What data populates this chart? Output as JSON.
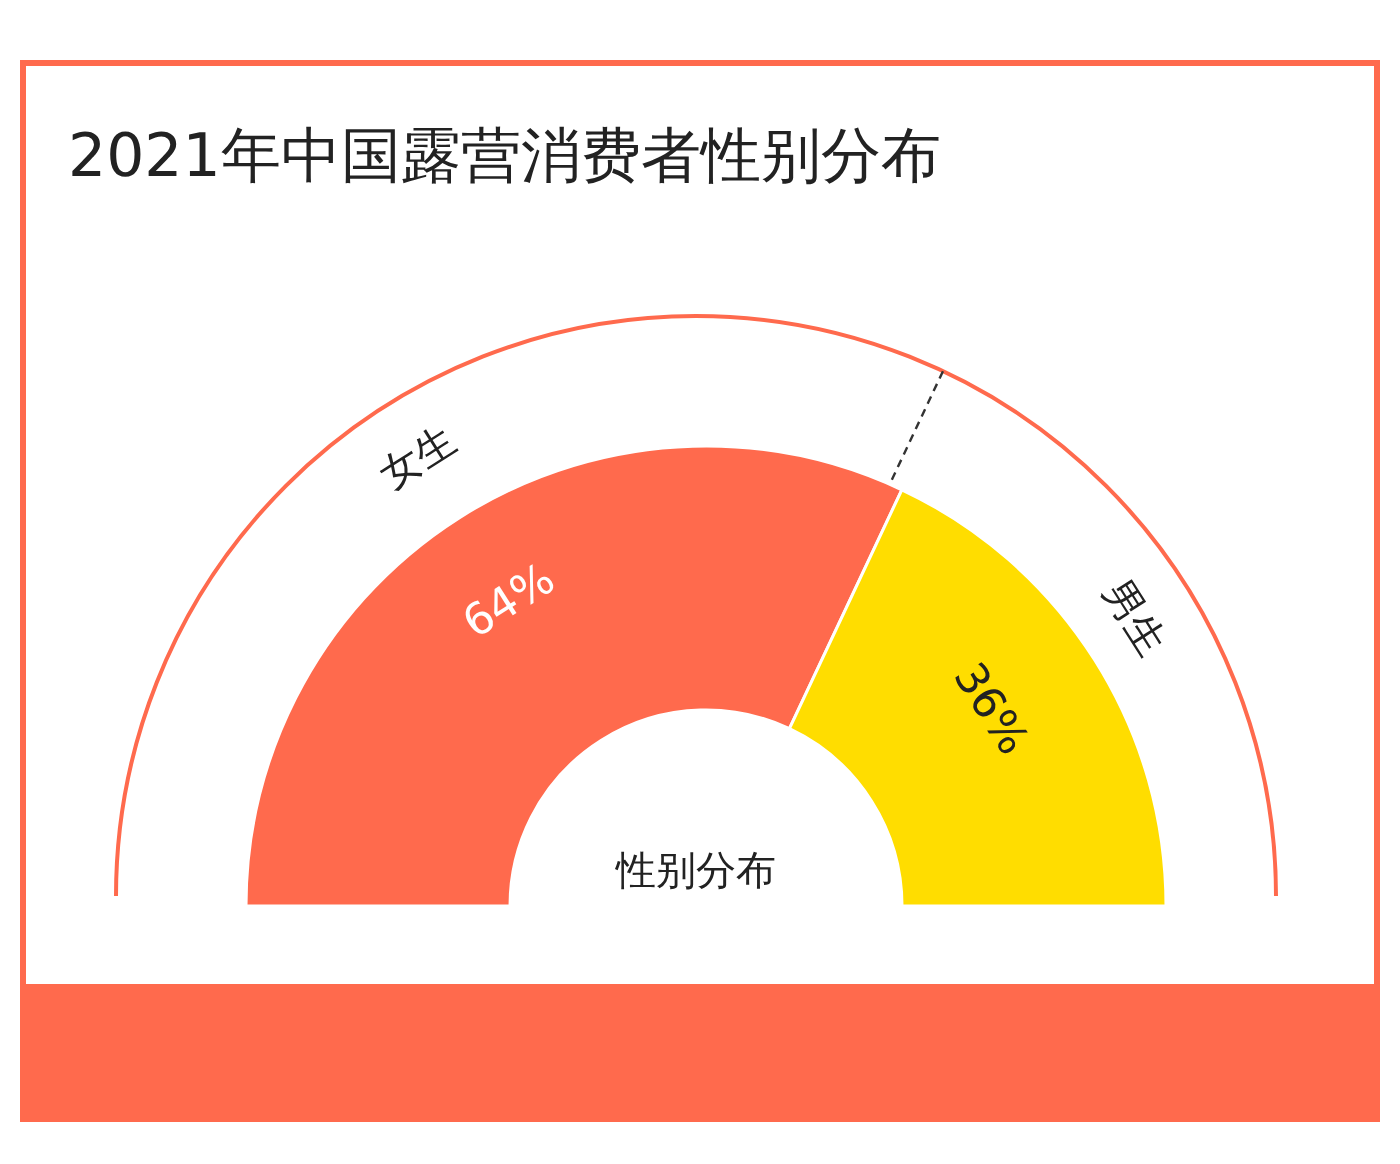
{
  "chart_data": {
    "type": "donut",
    "title": "2021年中国露营消费者性别分布",
    "categories": [
      "女生",
      "男生"
    ],
    "values": [
      64,
      36
    ],
    "colors": [
      "#ff6a4d",
      "#ffdd00"
    ],
    "value_labels": [
      "64%",
      "36%"
    ],
    "annotations": [
      "性别分布"
    ]
  }
}
